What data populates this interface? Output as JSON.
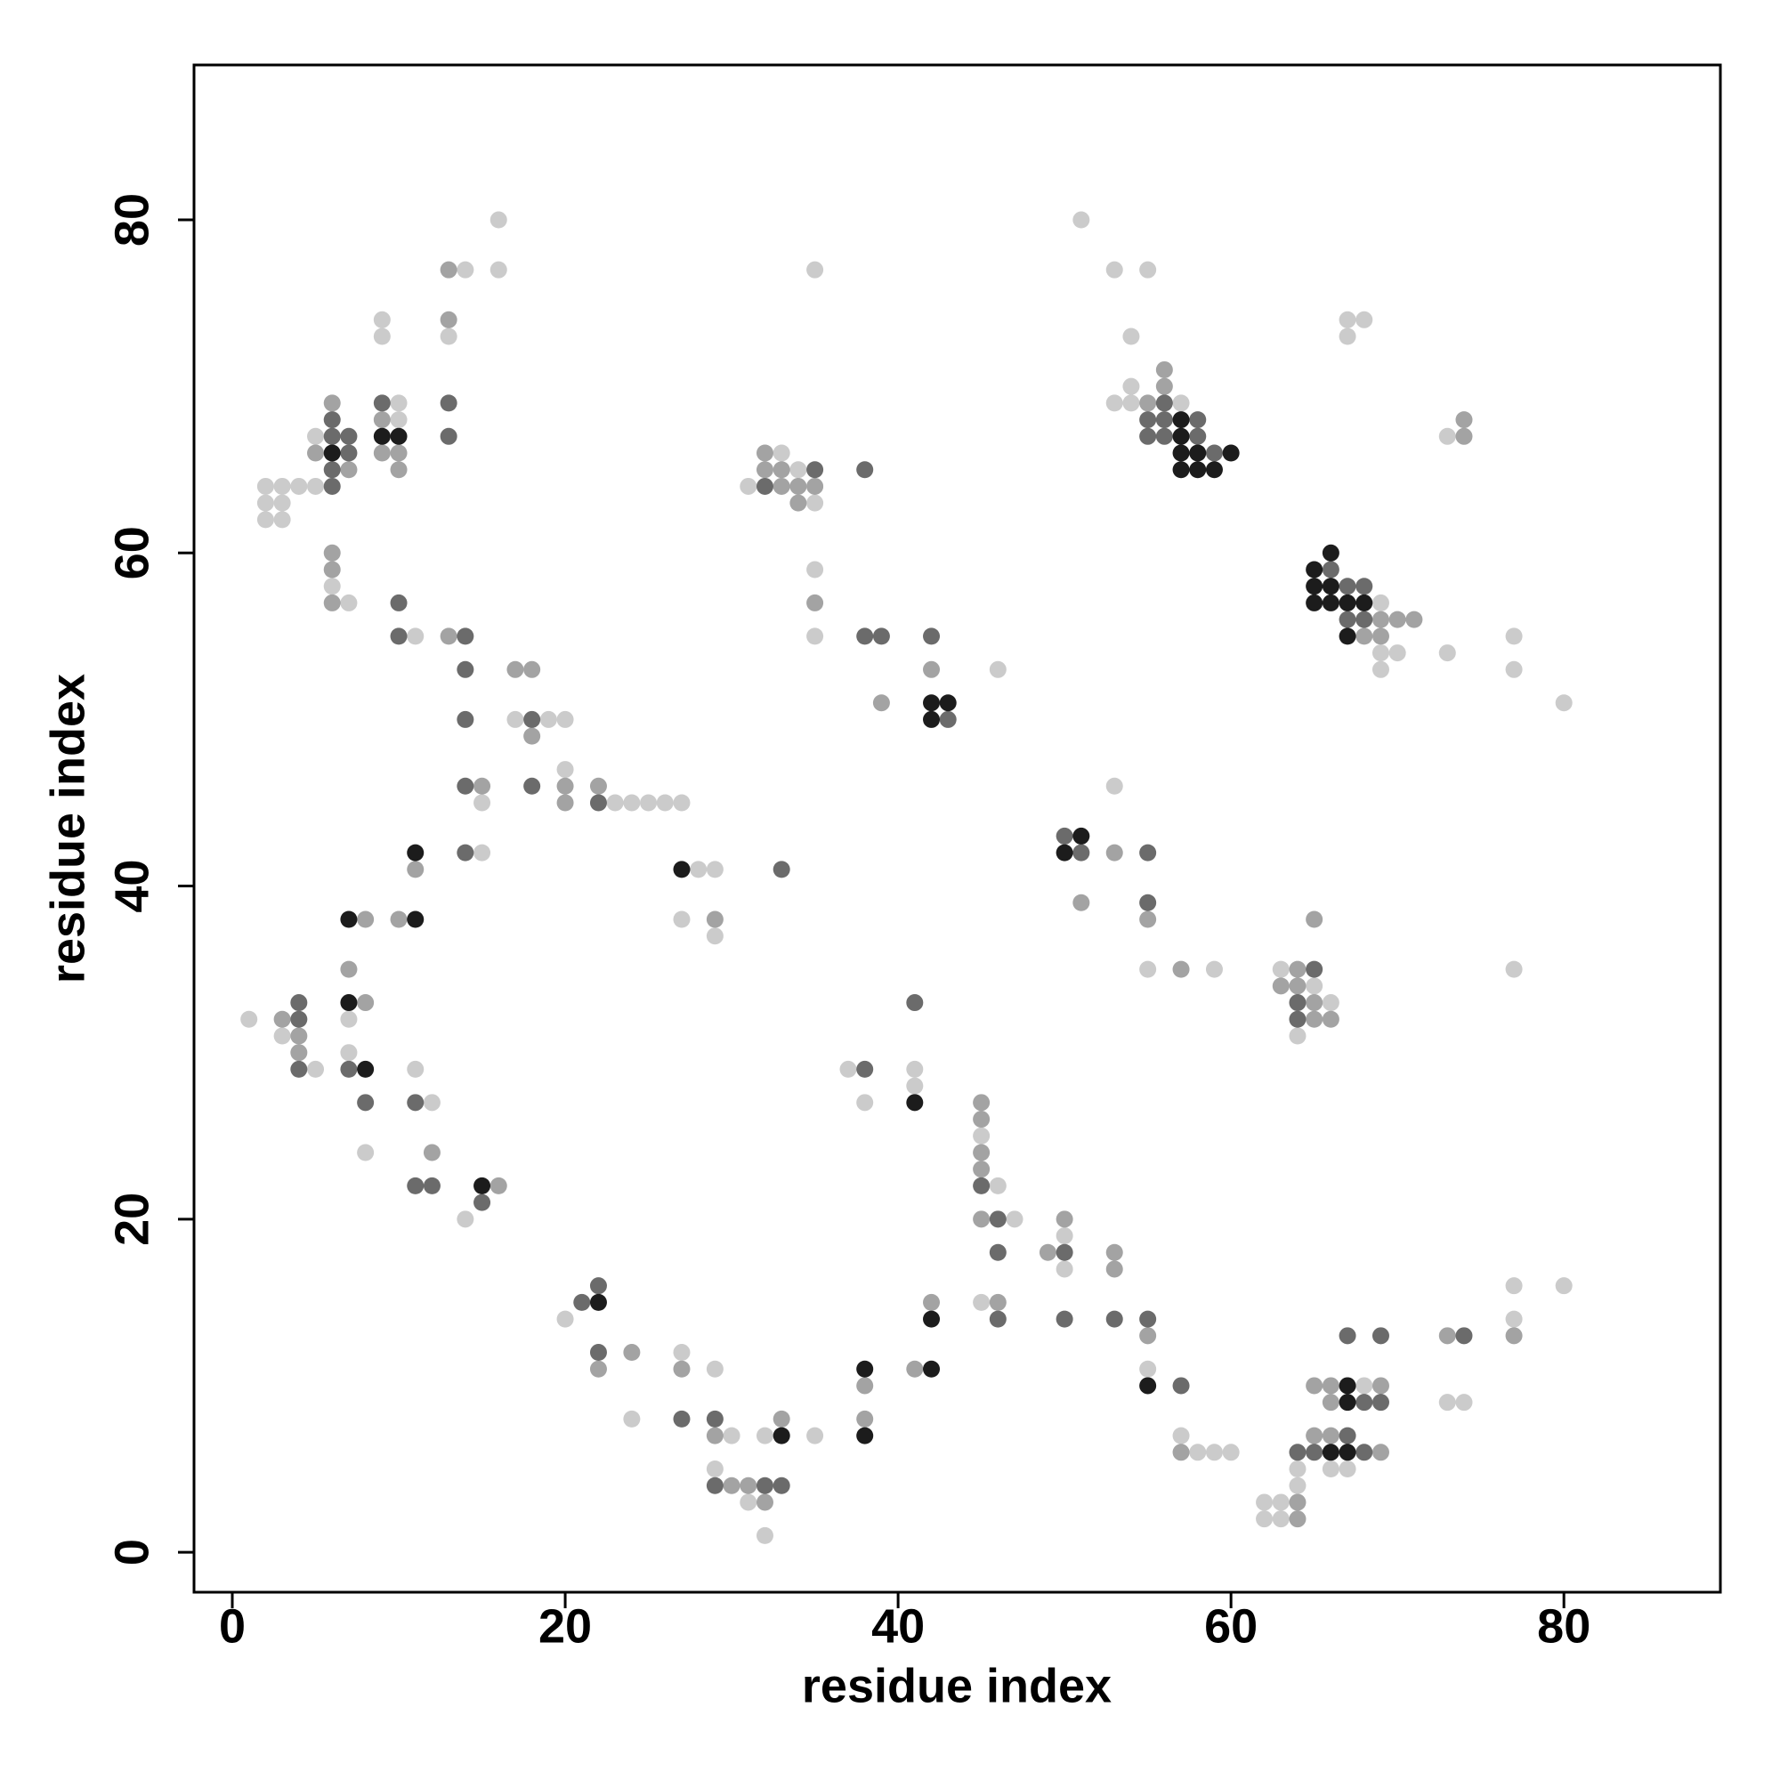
{
  "chart_data": {
    "type": "scatter",
    "xlabel": "residue index",
    "ylabel": "residue index",
    "xlim": [
      -2.3,
      89.4
    ],
    "ylim": [
      -2.4,
      89.3
    ],
    "xticks": [
      0,
      20,
      40,
      60,
      80
    ],
    "yticks": [
      0,
      20,
      40,
      60,
      80
    ],
    "series": [
      {
        "color": "#cbcbcb",
        "x": [
          16,
          14,
          16,
          9,
          9,
          13,
          10,
          10,
          5,
          2,
          3,
          4,
          5,
          2,
          3,
          2,
          3,
          6,
          7,
          11,
          17,
          19,
          20,
          15,
          20,
          23,
          24,
          25,
          26,
          27,
          15,
          28,
          29,
          27,
          29,
          7,
          7,
          8,
          1,
          3,
          5,
          11,
          12,
          14,
          20,
          24,
          27,
          29,
          30,
          29,
          31,
          32,
          32,
          35,
          37,
          38,
          41,
          41,
          45,
          46,
          47,
          45,
          50,
          50,
          55,
          57,
          58,
          59,
          60,
          62,
          63,
          62,
          63,
          64,
          64,
          66,
          67,
          68,
          73,
          74,
          77,
          77,
          80,
          35,
          33,
          34,
          31,
          35,
          35,
          35,
          46,
          53,
          55,
          59,
          63,
          65,
          66,
          64,
          77,
          51,
          53,
          55,
          54,
          54,
          53,
          54,
          57,
          69,
          69,
          70,
          69,
          67,
          68,
          67,
          73,
          73,
          77,
          77,
          80
        ],
        "y": [
          80,
          77,
          77,
          74,
          73,
          73,
          69,
          68,
          67,
          64,
          64,
          64,
          64,
          63,
          63,
          62,
          62,
          58,
          57,
          55,
          50,
          50,
          50,
          45,
          47,
          45,
          45,
          45,
          45,
          45,
          42,
          41,
          41,
          38,
          37,
          32,
          30,
          24,
          32,
          31,
          29,
          29,
          27,
          20,
          14,
          8,
          12,
          11,
          7,
          5,
          3,
          1,
          7,
          7,
          29,
          27,
          29,
          28,
          25,
          22,
          20,
          15,
          19,
          17,
          11,
          7,
          6,
          6,
          6,
          3,
          3,
          2,
          2,
          4,
          5,
          5,
          5,
          10,
          9,
          9,
          16,
          14,
          16,
          77,
          66,
          65,
          64,
          63,
          59,
          55,
          53,
          46,
          35,
          35,
          35,
          34,
          33,
          31,
          35,
          80,
          77,
          77,
          73,
          70,
          69,
          69,
          69,
          57,
          54,
          54,
          53,
          74,
          74,
          73,
          67,
          54,
          55,
          53,
          51
        ]
      },
      {
        "color": "#a3a3a3",
        "x": [
          13,
          9,
          9,
          10,
          10,
          6,
          5,
          7,
          6,
          6,
          6,
          13,
          17,
          18,
          18,
          15,
          20,
          20,
          22,
          11,
          29,
          8,
          10,
          7,
          8,
          3,
          4,
          4,
          12,
          16,
          22,
          24,
          27,
          29,
          30,
          31,
          32,
          33,
          38,
          38,
          41,
          42,
          45,
          45,
          45,
          45,
          45,
          46,
          49,
          50,
          53,
          53,
          55,
          57,
          64,
          64,
          69,
          65,
          66,
          65,
          66,
          69,
          66,
          73,
          77,
          32,
          32,
          33,
          33,
          34,
          35,
          34,
          35,
          39,
          42,
          53,
          51,
          55,
          57,
          64,
          63,
          64,
          65,
          65,
          66,
          65,
          56,
          56,
          55,
          69,
          70,
          71,
          68,
          69,
          74,
          74,
          13
        ],
        "y": [
          77,
          68,
          66,
          66,
          65,
          69,
          66,
          65,
          60,
          59,
          57,
          55,
          53,
          53,
          49,
          46,
          46,
          45,
          46,
          41,
          38,
          38,
          38,
          35,
          33,
          32,
          31,
          30,
          24,
          22,
          11,
          12,
          11,
          7,
          4,
          4,
          3,
          8,
          10,
          8,
          11,
          15,
          27,
          26,
          24,
          23,
          20,
          15,
          18,
          20,
          18,
          17,
          13,
          6,
          3,
          2,
          6,
          7,
          7,
          10,
          10,
          10,
          9,
          13,
          13,
          66,
          65,
          65,
          64,
          64,
          64,
          63,
          57,
          51,
          53,
          42,
          39,
          38,
          35,
          35,
          34,
          34,
          33,
          32,
          32,
          38,
          71,
          70,
          69,
          56,
          56,
          56,
          55,
          55,
          68,
          67,
          74
        ]
      },
      {
        "color": "#6b6b6b",
        "x": [
          13,
          13,
          9,
          6,
          7,
          6,
          7,
          6,
          6,
          10,
          10,
          14,
          14,
          14,
          18,
          14,
          18,
          22,
          14,
          33,
          7,
          8,
          4,
          4,
          4,
          11,
          11,
          12,
          15,
          21,
          22,
          22,
          27,
          29,
          29,
          32,
          33,
          38,
          41,
          45,
          46,
          46,
          46,
          50,
          50,
          53,
          55,
          57,
          64,
          65,
          68,
          67,
          68,
          69,
          67,
          69,
          74,
          35,
          32,
          38,
          38,
          39,
          42,
          43,
          50,
          51,
          55,
          55,
          65,
          64,
          64,
          56,
          55,
          56,
          58,
          55,
          56,
          58,
          59,
          66,
          67,
          68,
          67,
          68
        ],
        "y": [
          69,
          67,
          69,
          68,
          67,
          67,
          66,
          65,
          64,
          57,
          55,
          55,
          53,
          50,
          50,
          46,
          46,
          45,
          42,
          41,
          29,
          27,
          33,
          32,
          29,
          27,
          22,
          22,
          21,
          15,
          16,
          12,
          8,
          8,
          4,
          4,
          4,
          29,
          33,
          22,
          20,
          18,
          14,
          18,
          14,
          14,
          14,
          10,
          6,
          6,
          6,
          7,
          9,
          9,
          13,
          13,
          13,
          65,
          64,
          65,
          55,
          55,
          55,
          50,
          43,
          42,
          42,
          39,
          35,
          33,
          32,
          69,
          68,
          68,
          68,
          67,
          67,
          67,
          66,
          59,
          58,
          58,
          56,
          56
        ]
      },
      {
        "color": "#1c1c1c",
        "x": [
          9,
          10,
          6,
          11,
          27,
          7,
          11,
          7,
          8,
          15,
          22,
          33,
          38,
          38,
          42,
          42,
          41,
          55,
          66,
          67,
          67,
          67,
          42,
          43,
          42,
          51,
          50,
          57,
          57,
          57,
          58,
          60,
          57,
          58,
          59,
          66,
          65,
          65,
          66,
          65,
          66,
          67,
          68,
          67
        ],
        "y": [
          67,
          67,
          66,
          42,
          41,
          38,
          38,
          33,
          29,
          22,
          15,
          7,
          11,
          7,
          11,
          14,
          27,
          10,
          6,
          6,
          10,
          9,
          51,
          51,
          50,
          43,
          42,
          68,
          67,
          66,
          66,
          66,
          65,
          65,
          65,
          60,
          59,
          58,
          58,
          57,
          57,
          57,
          57,
          55
        ]
      }
    ]
  }
}
